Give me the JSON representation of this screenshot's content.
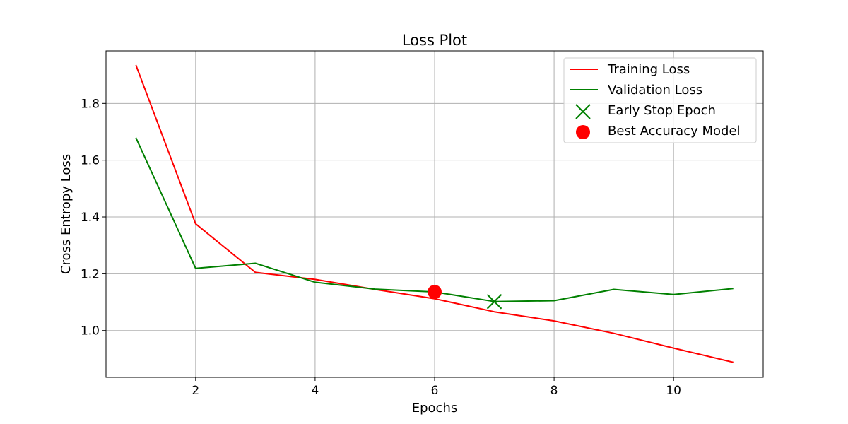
{
  "chart_data": {
    "type": "line",
    "title": "Loss Plot",
    "xlabel": "Epochs",
    "ylabel": "Cross Entropy Loss",
    "x": [
      1,
      2,
      3,
      4,
      5,
      6,
      7,
      8,
      9,
      10,
      11
    ],
    "xlim": [
      0.5,
      11.5
    ],
    "ylim": [
      0.835,
      1.985
    ],
    "xticks": [
      2,
      4,
      6,
      8,
      10
    ],
    "yticks": [
      1.0,
      1.2,
      1.4,
      1.6,
      1.8
    ],
    "xtick_labels": [
      "2",
      "4",
      "6",
      "8",
      "10"
    ],
    "ytick_labels": [
      "1.0",
      "1.2",
      "1.4",
      "1.6",
      "1.8"
    ],
    "grid": true,
    "legend_position": "top-right",
    "series": [
      {
        "name": "Training Loss",
        "color": "#ff0000",
        "values": [
          1.935,
          1.376,
          1.205,
          1.18,
          1.145,
          1.112,
          1.066,
          1.034,
          0.99,
          0.938,
          0.888
        ]
      },
      {
        "name": "Validation Loss",
        "color": "#008000",
        "values": [
          1.679,
          1.219,
          1.237,
          1.17,
          1.146,
          1.136,
          1.102,
          1.105,
          1.145,
          1.127,
          1.148
        ]
      }
    ],
    "markers": [
      {
        "name": "Early Stop Epoch",
        "marker": "x",
        "color": "#008000",
        "x": 7,
        "y": 1.102
      },
      {
        "name": "Best Accuracy Model",
        "marker": "circle",
        "color": "#ff0000",
        "x": 6,
        "y": 1.136
      }
    ]
  }
}
